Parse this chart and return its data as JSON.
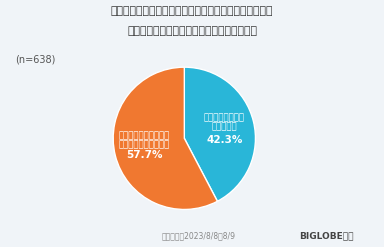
{
  "title_line1": "予約後に同じ宿でもっと安いプランや条件の良いプラン",
  "title_line2": "がないか探し、予約の変更をしたことがある",
  "n_label": "(n=638)",
  "slices": [
    42.3,
    57.7
  ],
  "colors": [
    "#29b6d8",
    "#f07830"
  ],
  "label_blue_l1": "予約の変更をした",
  "label_blue_l2": "ことがある",
  "label_blue_pct": "42.3%",
  "label_orange_l1": "探してみたが、予約の",
  "label_orange_l2": "変更をしたことはない",
  "label_orange_pct": "57.7%",
  "footer_left": "調査期間：2023/8/8〜8/9",
  "footer_right": "BIGLOBE調べ",
  "background_color": "#f0f4f8",
  "startangle": 90
}
